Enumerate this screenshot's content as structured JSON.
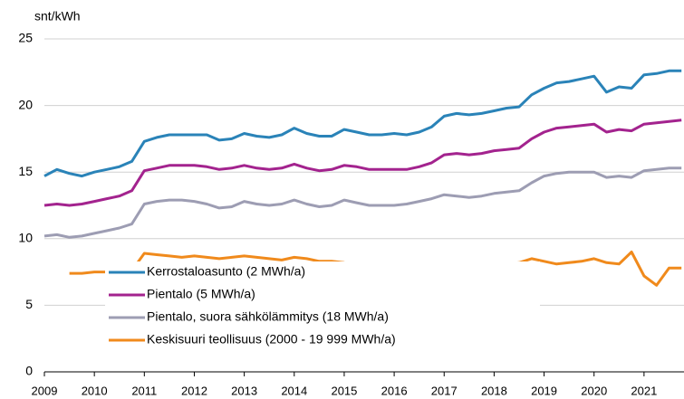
{
  "chart_data": {
    "type": "line",
    "y_label": "snt/kWh",
    "x": [
      2009,
      2009.25,
      2009.5,
      2009.75,
      2010,
      2010.25,
      2010.5,
      2010.75,
      2011,
      2011.25,
      2011.5,
      2011.75,
      2012,
      2012.25,
      2012.5,
      2012.75,
      2013,
      2013.25,
      2013.5,
      2013.75,
      2014,
      2014.25,
      2014.5,
      2014.75,
      2015,
      2015.25,
      2015.5,
      2015.75,
      2016,
      2016.25,
      2016.5,
      2016.75,
      2017,
      2017.25,
      2017.5,
      2017.75,
      2018,
      2018.25,
      2018.5,
      2018.75,
      2019,
      2019.25,
      2019.5,
      2019.75,
      2020,
      2020.25,
      2020.5,
      2020.75,
      2021,
      2021.25,
      2021.5,
      2021.75
    ],
    "series": [
      {
        "name": "Kerrostaloasunto (2 MWh/a)",
        "color": "#2a83b8",
        "values": [
          14.7,
          15.2,
          14.9,
          14.7,
          15.0,
          15.2,
          15.4,
          15.8,
          17.3,
          17.6,
          17.8,
          17.8,
          17.8,
          17.8,
          17.4,
          17.5,
          17.9,
          17.7,
          17.6,
          17.8,
          18.3,
          17.9,
          17.7,
          17.7,
          18.2,
          18.0,
          17.8,
          17.8,
          17.9,
          17.8,
          18.0,
          18.4,
          19.2,
          19.4,
          19.3,
          19.4,
          19.6,
          19.8,
          19.9,
          20.8,
          21.3,
          21.7,
          21.8,
          22.0,
          22.2,
          21.0,
          21.4,
          21.3,
          22.3,
          22.4,
          22.6,
          22.6
        ]
      },
      {
        "name": "Pientalo (5 MWh/a)",
        "color": "#a3238e",
        "values": [
          12.5,
          12.6,
          12.5,
          12.6,
          12.8,
          13.0,
          13.2,
          13.6,
          15.1,
          15.3,
          15.5,
          15.5,
          15.5,
          15.4,
          15.2,
          15.3,
          15.5,
          15.3,
          15.2,
          15.3,
          15.6,
          15.3,
          15.1,
          15.2,
          15.5,
          15.4,
          15.2,
          15.2,
          15.2,
          15.2,
          15.4,
          15.7,
          16.3,
          16.4,
          16.3,
          16.4,
          16.6,
          16.7,
          16.8,
          17.5,
          18.0,
          18.3,
          18.4,
          18.5,
          18.6,
          18.0,
          18.2,
          18.1,
          18.6,
          18.7,
          18.8,
          18.9
        ]
      },
      {
        "name": "Pientalo, suora sähkölämmitys (18 MWh/a)",
        "color": "#9d9db3",
        "values": [
          10.2,
          10.3,
          10.1,
          10.2,
          10.4,
          10.6,
          10.8,
          11.1,
          12.6,
          12.8,
          12.9,
          12.9,
          12.8,
          12.6,
          12.3,
          12.4,
          12.8,
          12.6,
          12.5,
          12.6,
          12.9,
          12.6,
          12.4,
          12.5,
          12.9,
          12.7,
          12.5,
          12.5,
          12.5,
          12.6,
          12.8,
          13.0,
          13.3,
          13.2,
          13.1,
          13.2,
          13.4,
          13.5,
          13.6,
          14.2,
          14.7,
          14.9,
          15.0,
          15.0,
          15.0,
          14.6,
          14.7,
          14.6,
          15.1,
          15.2,
          15.3,
          15.3
        ]
      },
      {
        "name": "Keskisuuri teollisuus (2000 - 19 999 MWh/a)",
        "color": "#f08a1c",
        "values": [
          null,
          null,
          7.4,
          7.4,
          7.5,
          7.5,
          7.6,
          7.6,
          8.9,
          8.8,
          8.7,
          8.6,
          8.7,
          8.6,
          8.5,
          8.6,
          8.7,
          8.6,
          8.5,
          8.4,
          8.6,
          8.5,
          8.3,
          8.3,
          8.2,
          8.0,
          8.0,
          8.0,
          8.0,
          7.9,
          8.0,
          8.1,
          8.0,
          8.0,
          7.9,
          8.0,
          8.0,
          8.1,
          8.2,
          8.5,
          8.3,
          8.1,
          8.2,
          8.3,
          8.5,
          8.2,
          8.1,
          9.0,
          7.2,
          6.5,
          7.8,
          7.8
        ]
      }
    ],
    "xlim": [
      2009,
      2021.8
    ],
    "xticks": [
      2009,
      2010,
      2011,
      2012,
      2013,
      2014,
      2015,
      2016,
      2017,
      2018,
      2019,
      2020,
      2021
    ],
    "ylim": [
      0,
      25
    ],
    "yticks": [
      0,
      5,
      10,
      15,
      20,
      25
    ],
    "grid": true,
    "legend": "lower left"
  }
}
